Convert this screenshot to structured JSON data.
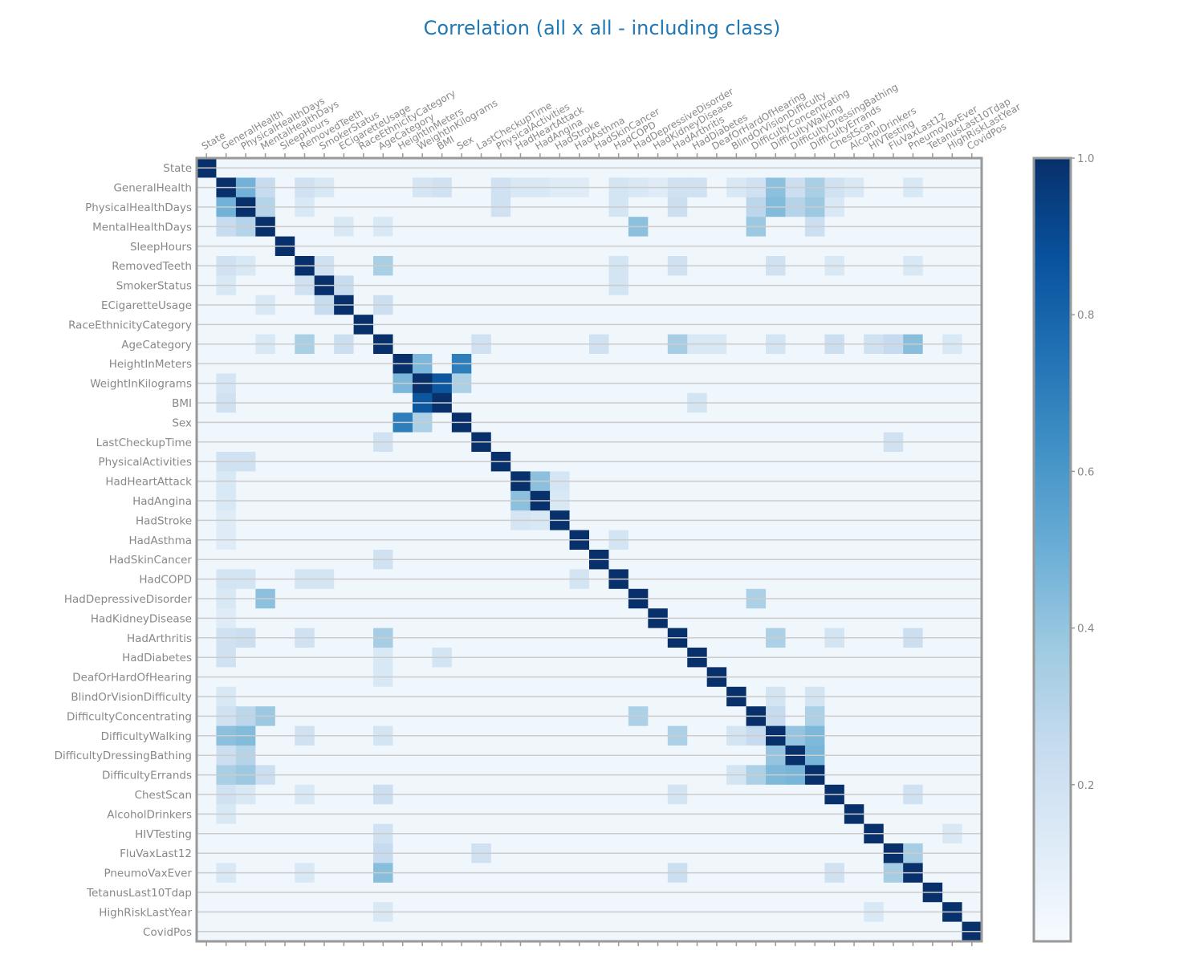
{
  "chart_data": {
    "type": "heatmap",
    "title": "Correlation (all x all - including class)",
    "labels": [
      "State",
      "GeneralHealth",
      "PhysicalHealthDays",
      "MentalHealthDays",
      "SleepHours",
      "RemovedTeeth",
      "SmokerStatus",
      "ECigaretteUsage",
      "RaceEthnicityCategory",
      "AgeCategory",
      "HeightInMeters",
      "WeightInKilograms",
      "BMI",
      "Sex",
      "LastCheckupTime",
      "PhysicalActivities",
      "HadHeartAttack",
      "HadAngina",
      "HadStroke",
      "HadAsthma",
      "HadSkinCancer",
      "HadCOPD",
      "HadDepressiveDisorder",
      "HadKidneyDisease",
      "HadArthritis",
      "HadDiabetes",
      "DeafOrHardOfHearing",
      "BlindOrVisionDifficulty",
      "DifficultyConcentrating",
      "DifficultyWalking",
      "DifficultyDressingBathing",
      "DifficultyErrands",
      "ChestScan",
      "AlcoholDrinkers",
      "HIVTesting",
      "FluVaxLast12",
      "PneumoVaxEver",
      "TetanusLast10Tdap",
      "HighRiskLastYear",
      "CovidPos"
    ],
    "colormap": "Blues",
    "color_range": [
      0.0,
      1.0
    ],
    "colorbar_ticks": [
      "0.2",
      "0.4",
      "0.6",
      "0.8",
      "1.0"
    ],
    "colorbar_tick_values": [
      0.2,
      0.4,
      0.6,
      0.8,
      1.0
    ],
    "diagonal": 1.0,
    "default_value": 0.04,
    "notable_pairs": [
      [
        "GeneralHealth",
        "PhysicalHealthDays",
        0.48
      ],
      [
        "GeneralHealth",
        "MentalHealthDays",
        0.24
      ],
      [
        "GeneralHealth",
        "RemovedTeeth",
        0.2
      ],
      [
        "GeneralHealth",
        "SmokerStatus",
        0.15
      ],
      [
        "GeneralHealth",
        "WeightInKilograms",
        0.17
      ],
      [
        "GeneralHealth",
        "BMI",
        0.2
      ],
      [
        "GeneralHealth",
        "PhysicalActivities",
        0.2
      ],
      [
        "GeneralHealth",
        "HadHeartAttack",
        0.15
      ],
      [
        "GeneralHealth",
        "HadAngina",
        0.15
      ],
      [
        "GeneralHealth",
        "HadStroke",
        0.12
      ],
      [
        "GeneralHealth",
        "HadAsthma",
        0.12
      ],
      [
        "GeneralHealth",
        "HadCOPD",
        0.18
      ],
      [
        "GeneralHealth",
        "HadDepressiveDisorder",
        0.15
      ],
      [
        "GeneralHealth",
        "HadKidneyDisease",
        0.12
      ],
      [
        "GeneralHealth",
        "HadArthritis",
        0.2
      ],
      [
        "GeneralHealth",
        "HadDiabetes",
        0.2
      ],
      [
        "GeneralHealth",
        "BlindOrVisionDifficulty",
        0.15
      ],
      [
        "GeneralHealth",
        "DifficultyConcentrating",
        0.2
      ],
      [
        "GeneralHealth",
        "DifficultyWalking",
        0.42
      ],
      [
        "GeneralHealth",
        "DifficultyDressingBathing",
        0.22
      ],
      [
        "GeneralHealth",
        "DifficultyErrands",
        0.34
      ],
      [
        "GeneralHealth",
        "ChestScan",
        0.2
      ],
      [
        "GeneralHealth",
        "AlcoholDrinkers",
        0.15
      ],
      [
        "GeneralHealth",
        "PneumoVaxEver",
        0.15
      ],
      [
        "PhysicalHealthDays",
        "MentalHealthDays",
        0.3
      ],
      [
        "PhysicalHealthDays",
        "DifficultyWalking",
        0.44
      ],
      [
        "PhysicalHealthDays",
        "DifficultyErrands",
        0.38
      ],
      [
        "PhysicalHealthDays",
        "DifficultyConcentrating",
        0.28
      ],
      [
        "PhysicalHealthDays",
        "DifficultyDressingBathing",
        0.3
      ],
      [
        "PhysicalHealthDays",
        "HadArthritis",
        0.22
      ],
      [
        "PhysicalHealthDays",
        "HadCOPD",
        0.18
      ],
      [
        "PhysicalHealthDays",
        "ChestScan",
        0.15
      ],
      [
        "PhysicalHealthDays",
        "RemovedTeeth",
        0.15
      ],
      [
        "PhysicalHealthDays",
        "PhysicalActivities",
        0.2
      ],
      [
        "MentalHealthDays",
        "HadDepressiveDisorder",
        0.42
      ],
      [
        "MentalHealthDays",
        "DifficultyConcentrating",
        0.38
      ],
      [
        "MentalHealthDays",
        "DifficultyErrands",
        0.22
      ],
      [
        "MentalHealthDays",
        "ECigaretteUsage",
        0.15
      ],
      [
        "MentalHealthDays",
        "AgeCategory",
        0.15
      ],
      [
        "RemovedTeeth",
        "SmokerStatus",
        0.2
      ],
      [
        "RemovedTeeth",
        "AgeCategory",
        0.34
      ],
      [
        "RemovedTeeth",
        "HadArthritis",
        0.2
      ],
      [
        "RemovedTeeth",
        "DifficultyWalking",
        0.2
      ],
      [
        "RemovedTeeth",
        "HadCOPD",
        0.18
      ],
      [
        "RemovedTeeth",
        "ChestScan",
        0.15
      ],
      [
        "RemovedTeeth",
        "PneumoVaxEver",
        0.15
      ],
      [
        "SmokerStatus",
        "ECigaretteUsage",
        0.24
      ],
      [
        "SmokerStatus",
        "HadCOPD",
        0.18
      ],
      [
        "ECigaretteUsage",
        "AgeCategory",
        0.22
      ],
      [
        "AgeCategory",
        "HadArthritis",
        0.35
      ],
      [
        "AgeCategory",
        "PneumoVaxEver",
        0.43
      ],
      [
        "AgeCategory",
        "ChestScan",
        0.22
      ],
      [
        "AgeCategory",
        "LastCheckupTime",
        0.2
      ],
      [
        "AgeCategory",
        "HadSkinCancer",
        0.2
      ],
      [
        "AgeCategory",
        "FluVaxLast12",
        0.25
      ],
      [
        "AgeCategory",
        "HIVTesting",
        0.2
      ],
      [
        "AgeCategory",
        "HighRiskLastYear",
        0.15
      ],
      [
        "AgeCategory",
        "DifficultyWalking",
        0.18
      ],
      [
        "AgeCategory",
        "HadDiabetes",
        0.15
      ],
      [
        "AgeCategory",
        "DeafOrHardOfHearing",
        0.15
      ],
      [
        "HeightInMeters",
        "WeightInKilograms",
        0.46
      ],
      [
        "HeightInMeters",
        "Sex",
        0.7
      ],
      [
        "WeightInKilograms",
        "BMI",
        0.85
      ],
      [
        "WeightInKilograms",
        "Sex",
        0.33
      ],
      [
        "BMI",
        "HadDiabetes",
        0.18
      ],
      [
        "LastCheckupTime",
        "FluVaxLast12",
        0.2
      ],
      [
        "HadHeartAttack",
        "HadAngina",
        0.42
      ],
      [
        "HadHeartAttack",
        "HadStroke",
        0.17
      ],
      [
        "HadAngina",
        "HadStroke",
        0.15
      ],
      [
        "HadCOPD",
        "HadAsthma",
        0.18
      ],
      [
        "HadDepressiveDisorder",
        "DifficultyConcentrating",
        0.33
      ],
      [
        "HadArthritis",
        "DifficultyWalking",
        0.33
      ],
      [
        "HadArthritis",
        "PneumoVaxEver",
        0.22
      ],
      [
        "HadArthritis",
        "ChestScan",
        0.18
      ],
      [
        "DifficultyConcentrating",
        "DifficultyErrands",
        0.33
      ],
      [
        "DifficultyConcentrating",
        "DifficultyWalking",
        0.25
      ],
      [
        "DifficultyWalking",
        "DifficultyDressingBathing",
        0.4
      ],
      [
        "DifficultyWalking",
        "DifficultyErrands",
        0.45
      ],
      [
        "DifficultyDressingBathing",
        "DifficultyErrands",
        0.47
      ],
      [
        "BlindOrVisionDifficulty",
        "DifficultyWalking",
        0.18
      ],
      [
        "BlindOrVisionDifficulty",
        "DifficultyErrands",
        0.18
      ],
      [
        "ChestScan",
        "PneumoVaxEver",
        0.2
      ],
      [
        "FluVaxLast12",
        "PneumoVaxEver",
        0.35
      ],
      [
        "HIVTesting",
        "HighRiskLastYear",
        0.15
      ]
    ],
    "grid": true
  }
}
